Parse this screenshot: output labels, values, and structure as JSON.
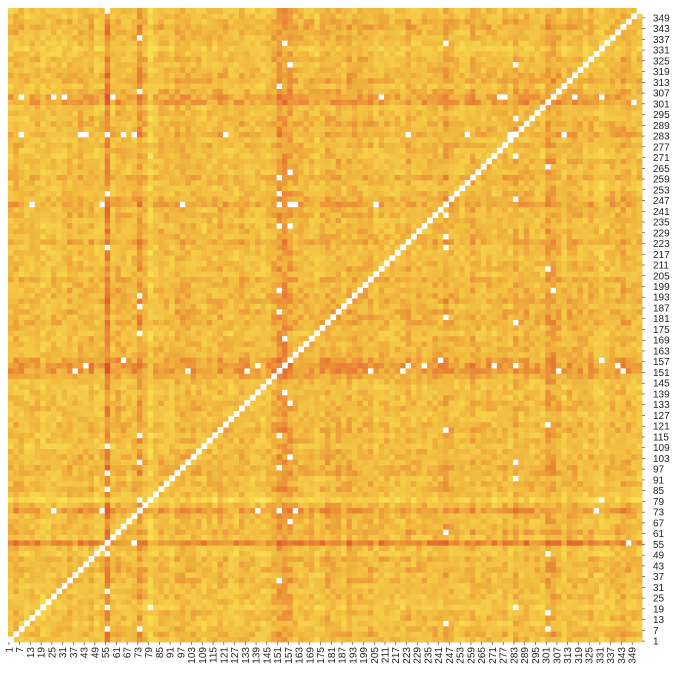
{
  "chart_data": {
    "type": "heatmap",
    "title": "",
    "xlabel": "",
    "ylabel": "",
    "n": 354,
    "x_tick_labels": [
      "1",
      "7",
      "13",
      "19",
      "25",
      "31",
      "37",
      "43",
      "49",
      "55",
      "61",
      "67",
      "73",
      "79",
      "85",
      "91",
      "97",
      "103",
      "109",
      "115",
      "121",
      "127",
      "133",
      "139",
      "145",
      "151",
      "157",
      "163",
      "169",
      "175",
      "181",
      "187",
      "193",
      "199",
      "205",
      "211",
      "217",
      "223",
      "229",
      "235",
      "241",
      "247",
      "253",
      "259",
      "265",
      "271",
      "277",
      "283",
      "289",
      "295",
      "301",
      "307",
      "313",
      "319",
      "325",
      "331",
      "337",
      "343",
      "349"
    ],
    "y_tick_labels": [
      "1",
      "7",
      "13",
      "19",
      "25",
      "31",
      "37",
      "43",
      "49",
      "55",
      "61",
      "67",
      "73",
      "79",
      "85",
      "91",
      "97",
      "103",
      "109",
      "115",
      "121",
      "127",
      "133",
      "139",
      "145",
      "151",
      "157",
      "163",
      "169",
      "175",
      "181",
      "187",
      "193",
      "199",
      "205",
      "211",
      "217",
      "223",
      "229",
      "235",
      "241",
      "247",
      "253",
      "259",
      "265",
      "271",
      "277",
      "283",
      "289",
      "295",
      "301",
      "307",
      "313",
      "319",
      "325",
      "331",
      "337",
      "343",
      "349"
    ],
    "value_range": [
      0,
      1
    ],
    "diagonal_value": 1,
    "color_scale": {
      "low": "#e0462a",
      "mid": "#f0b63e",
      "high": "#fbe451",
      "max": "#ffffff"
    },
    "typical_value": 0.55,
    "highlighted_rows": [
      {
        "index": 55,
        "value": 0.25
      },
      {
        "index": 57,
        "value": 0.28
      },
      {
        "index": 73,
        "value": 0.3
      },
      {
        "index": 152,
        "value": 0.22
      },
      {
        "index": 155,
        "value": 0.25
      },
      {
        "index": 158,
        "value": 0.3
      },
      {
        "index": 245,
        "value": 0.25
      },
      {
        "index": 283,
        "value": 0.32
      },
      {
        "index": 301,
        "value": 0.28
      },
      {
        "index": 304,
        "value": 0.3
      }
    ],
    "bright_rows": [
      {
        "index": 19,
        "value": 0.8
      },
      {
        "index": 50,
        "value": 0.75
      },
      {
        "index": 79,
        "value": 0.78
      },
      {
        "index": 143,
        "value": 0.76
      },
      {
        "index": 333,
        "value": 0.8
      }
    ],
    "grid": false,
    "legend": "none"
  }
}
